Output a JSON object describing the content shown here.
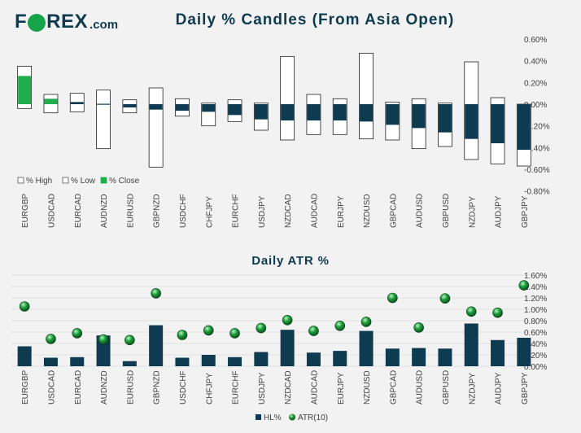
{
  "brand": {
    "pre": "F",
    "post": "REX",
    "suffix": ".com"
  },
  "colors": {
    "navy": "#0e3b4f",
    "green": "#1fae4b",
    "orb": "#1e9e3c",
    "gridline": "#dcdcdc",
    "background": "#f2f2f2",
    "text": "#404040"
  },
  "chart_data": [
    {
      "type": "candlestick",
      "title": "Daily % Candles (From Asia Open)",
      "categories": [
        "EURGBP",
        "USDCAD",
        "EURCAD",
        "AUDNZD",
        "EURUSD",
        "GBPNZD",
        "USDCHF",
        "CHFJPY",
        "EURCHF",
        "USDJPY",
        "NZDCAD",
        "AUDCAD",
        "EURJPY",
        "NZDUSD",
        "GBPCAD",
        "AUDUSD",
        "GBPUSD",
        "NZDJPY",
        "AUDJPY",
        "GBPJPY"
      ],
      "series": [
        {
          "name": "% High",
          "values": [
            0.35,
            0.09,
            0.1,
            0.13,
            0.04,
            0.15,
            0.05,
            0.01,
            0.04,
            0.01,
            0.44,
            0.09,
            0.05,
            0.47,
            0.02,
            0.05,
            0.01,
            0.39,
            0.06,
            0.0
          ]
        },
        {
          "name": "% Low",
          "values": [
            -0.04,
            -0.08,
            -0.07,
            -0.41,
            -0.08,
            -0.58,
            -0.11,
            -0.2,
            -0.16,
            -0.24,
            -0.33,
            -0.28,
            -0.28,
            -0.32,
            -0.33,
            -0.41,
            -0.39,
            -0.51,
            -0.55,
            -0.57
          ]
        },
        {
          "name": "% Close",
          "values": [
            0.26,
            0.05,
            0.02,
            0.0,
            -0.03,
            -0.05,
            -0.06,
            -0.07,
            -0.1,
            -0.14,
            -0.15,
            -0.15,
            -0.15,
            -0.16,
            -0.19,
            -0.22,
            -0.26,
            -0.32,
            -0.36,
            -0.42
          ]
        }
      ],
      "legend": [
        "% High",
        "% Low",
        "% Close"
      ],
      "legend_position": "bottom-left",
      "ylim": [
        -0.8,
        0.6
      ],
      "yticks": [
        "0.60%",
        "0.40%",
        "0.20%",
        "0.00%",
        "-0.20%",
        "-0.40%",
        "-0.60%",
        "-0.80%"
      ]
    },
    {
      "type": "bar",
      "title": "Daily ATR %",
      "categories": [
        "EURGBP",
        "USDCAD",
        "EURCAD",
        "AUDNZD",
        "EURUSD",
        "GBPNZD",
        "USDCHF",
        "CHFJPY",
        "EURCHF",
        "USDJPY",
        "NZDCAD",
        "AUDCAD",
        "EURJPY",
        "NZDUSD",
        "GBPCAD",
        "AUDUSD",
        "GBPUSD",
        "NZDJPY",
        "AUDJPY",
        "GBPJPY"
      ],
      "series": [
        {
          "name": "HL%",
          "type": "bar",
          "values": [
            0.35,
            0.15,
            0.16,
            0.54,
            0.09,
            0.72,
            0.15,
            0.2,
            0.16,
            0.25,
            0.64,
            0.24,
            0.27,
            0.62,
            0.31,
            0.32,
            0.31,
            0.75,
            0.46,
            0.5
          ]
        },
        {
          "name": "ATR(10)",
          "type": "marker",
          "values": [
            1.05,
            0.48,
            0.58,
            0.47,
            0.46,
            1.28,
            0.55,
            0.63,
            0.58,
            0.67,
            0.81,
            0.62,
            0.71,
            0.78,
            1.2,
            0.68,
            1.19,
            0.96,
            0.94,
            1.42
          ]
        }
      ],
      "legend": [
        "HL%",
        "ATR(10)"
      ],
      "legend_position": "bottom-center",
      "ylim": [
        0,
        1.6
      ],
      "yticks": [
        "1.60%",
        "1.40%",
        "1.20%",
        "1.00%",
        "0.80%",
        "0.60%",
        "0.40%",
        "0.20%",
        "0.00%"
      ]
    }
  ]
}
